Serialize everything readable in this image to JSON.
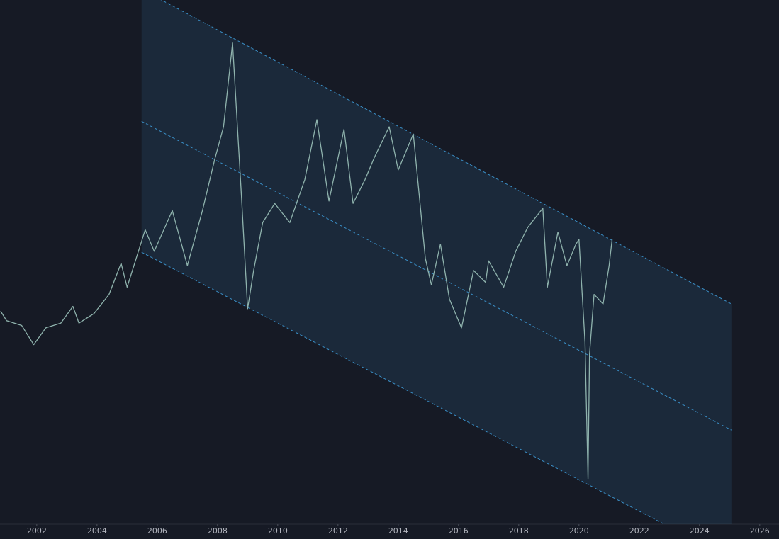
{
  "chart_data": {
    "type": "line",
    "x": [
      2000.8,
      2001.0,
      2001.5,
      2001.9,
      2002.3,
      2002.8,
      2003.2,
      2003.4,
      2003.9,
      2004.4,
      2004.8,
      2005.0,
      2005.6,
      2005.9,
      2006.5,
      2007.0,
      2007.5,
      2007.9,
      2008.2,
      2008.5,
      2008.8,
      2009.0,
      2009.2,
      2009.5,
      2009.9,
      2010.4,
      2010.9,
      2011.3,
      2011.7,
      2012.2,
      2012.5,
      2012.9,
      2013.2,
      2013.7,
      2014.0,
      2014.5,
      2014.9,
      2015.1,
      2015.4,
      2015.7,
      2016.1,
      2016.5,
      2016.9,
      2017.0,
      2017.5,
      2017.9,
      2018.3,
      2018.8,
      2018.95,
      2019.3,
      2019.6,
      2019.9,
      2020.0,
      2020.2,
      2020.3,
      2020.35,
      2020.5,
      2020.8,
      2021.0,
      2021.1
    ],
    "values": [
      33,
      29,
      27,
      19,
      26,
      28,
      35,
      28,
      32,
      40,
      53,
      43,
      67,
      58,
      75,
      52,
      75,
      96,
      110,
      145,
      80,
      34,
      50,
      70,
      78,
      70,
      88,
      113,
      79,
      109,
      78,
      88,
      97,
      110,
      92,
      107,
      55,
      44,
      61,
      38,
      26,
      50,
      45,
      54,
      43,
      58,
      68,
      76,
      43,
      66,
      52,
      61,
      63,
      20,
      -37,
      15,
      40,
      36,
      52,
      63
    ],
    "color": "#8fb3ad",
    "channel": [
      {
        "x": [
          2005.48,
          2025.06
        ],
        "values": [
          167.4,
          36
        ]
      },
      {
        "x": [
          2005.48,
          2025.06
        ],
        "values": [
          112.3,
          -16.7
        ]
      },
      {
        "x": [
          2005.48,
          2025.06
        ],
        "values": [
          57.6,
          -70.6
        ]
      }
    ],
    "channel_color": "#3a8fc7",
    "xlim": [
      2000.78,
      2026.64
    ],
    "ylim": [
      -56,
      163
    ],
    "xticks": [
      2002,
      2004,
      2006,
      2008,
      2010,
      2012,
      2014,
      2016,
      2018,
      2020,
      2022,
      2024,
      2026
    ]
  }
}
